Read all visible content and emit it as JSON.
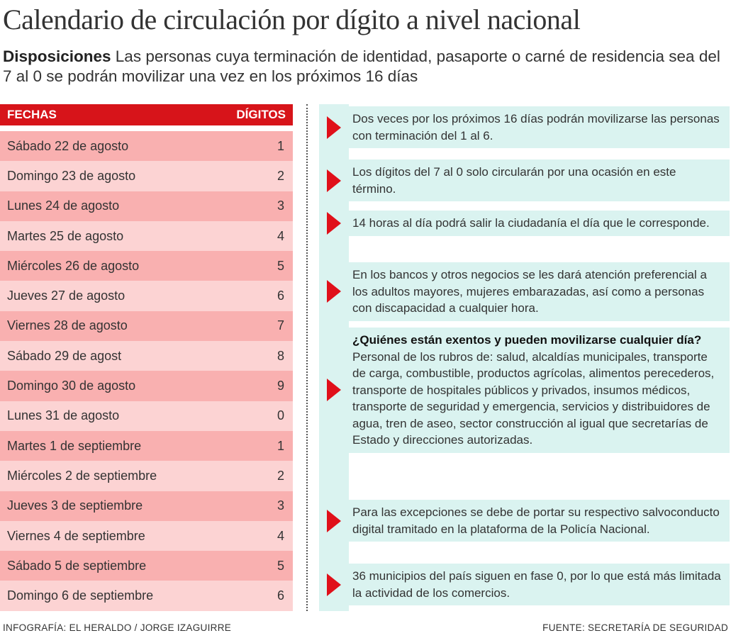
{
  "title": "Calendario de circulación por dígito a nivel nacional",
  "subtitle": {
    "lead": "Disposiciones",
    "text": " Las personas cuya terminación de identidad, pasaporte o carné de residencia sea del 7 al 0 se podrán movilizar una vez en los próximos 16 días"
  },
  "table": {
    "headers": [
      "FECHAS",
      "DÍGITOS"
    ],
    "rows": [
      [
        "Sábado 22 de agosto",
        "1"
      ],
      [
        "Domingo 23 de agosto",
        "2"
      ],
      [
        "Lunes 24 de agosto",
        "3"
      ],
      [
        "Martes 25 de agosto",
        "4"
      ],
      [
        "Miércoles 26 de agosto",
        "5"
      ],
      [
        "Jueves 27 de agosto",
        "6"
      ],
      [
        "Viernes 28 de agosto",
        "7"
      ],
      [
        "Sábado 29 de agost",
        "8"
      ],
      [
        "Domingo 30 de agosto",
        "9"
      ],
      [
        "Lunes 31 de agosto",
        "0"
      ],
      [
        "Martes 1 de septiembre",
        "1"
      ],
      [
        "Miércoles 2 de septiembre",
        "2"
      ],
      [
        "Jueves 3 de septiembre",
        "3"
      ],
      [
        "Viernes 4 de septiembre",
        "4"
      ],
      [
        "Sábado 5 de septiembre",
        "5"
      ],
      [
        "Domingo 6 de septiembre",
        "6"
      ]
    ]
  },
  "items": [
    {
      "text": "Dos veces por los próximos 16 días podrán movilizarse las personas con terminación del 1 al 6."
    },
    {
      "text": "Los dígitos del 7 al 0 solo circularán por una ocasión en este término."
    },
    {
      "text": "14 horas al día podrá salir la ciudadanía el día que le corresponde."
    },
    {
      "text": "En los bancos y otros negocios se les dará atención preferencial a los adultos mayores, mujeres embarazadas, así como a personas con discapacidad a cualquier hora."
    },
    {
      "heading": "¿Quiénes están exentos y pueden movilizarse cualquier día?",
      "text": "Personal de los rubros de: salud, alcaldías municipales, transporte de carga, combustible, productos agrícolas, alimentos perecederos, transporte de hospitales públicos y privados, insumos médicos, transporte de seguridad y emergencia, servicios y distribuidores de agua, tren de aseo, sector construcción al igual que secretarías de Estado y direcciones autorizadas."
    },
    {
      "text": "Para las excepciones se debe de portar su respectivo salvoconducto digital tramitado en la plataforma de la Policía Nacional."
    },
    {
      "text": "36 municipios del país siguen en fase 0, por lo que está más limitada la actividad de los comercios."
    }
  ],
  "footer": {
    "credit": "INFOGRAFÍA: EL HERALDO / JORGE IZAGUIRRE",
    "source": "FUENTE: SECRETARÍA DE SEGURIDAD"
  },
  "colors": {
    "accent": "#d7141a",
    "row_dark": "#f9b0b0",
    "row_light": "#fcd3d3",
    "panel": "#daf3f0"
  }
}
